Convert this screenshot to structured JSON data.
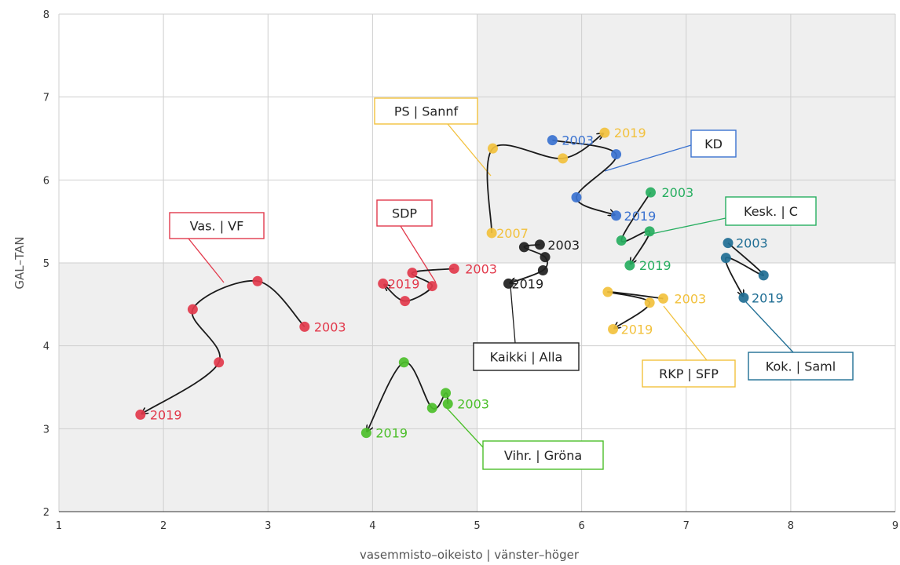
{
  "chart_data": {
    "type": "scatter",
    "xlabel": "vasemmisto–oikeisto | vänster–höger",
    "ylabel": "GAL–TAN",
    "xlim": [
      1,
      9
    ],
    "ylim": [
      2,
      8
    ],
    "xticks": [
      "1",
      "2",
      "3",
      "4",
      "5",
      "6",
      "7",
      "8",
      "9"
    ],
    "yticks": [
      "2",
      "3",
      "4",
      "5",
      "6",
      "7",
      "8"
    ],
    "grid": true,
    "quadrant_shading": [
      {
        "x": [
          1,
          5
        ],
        "y": [
          2,
          5
        ],
        "color": "#efefef"
      },
      {
        "x": [
          5,
          9
        ],
        "y": [
          5,
          8
        ],
        "color": "#efefef"
      }
    ],
    "series": [
      {
        "name": "Vas. | VF",
        "color": "#e23a4c",
        "points": [
          [
            3.35,
            4.23
          ],
          [
            2.9,
            4.78
          ],
          [
            2.28,
            4.44
          ],
          [
            2.53,
            3.8
          ],
          [
            1.78,
            3.17
          ]
        ],
        "year_labels": [
          {
            "text": "2003",
            "index": 0
          },
          {
            "text": "2019",
            "index": 4
          }
        ]
      },
      {
        "name": "SDP",
        "color": "#e23a4c",
        "points": [
          [
            4.78,
            4.93
          ],
          [
            4.38,
            4.88
          ],
          [
            4.57,
            4.72
          ],
          [
            4.31,
            4.54
          ],
          [
            4.1,
            4.75
          ]
        ],
        "year_labels": [
          {
            "text": "2003",
            "index": 0
          },
          {
            "text": "2019",
            "index": 4
          }
        ]
      },
      {
        "name": "Vihr. | Gröna",
        "color": "#4cbf2a",
        "points": [
          [
            4.72,
            3.3
          ],
          [
            4.7,
            3.43
          ],
          [
            4.57,
            3.25
          ],
          [
            4.3,
            3.8
          ],
          [
            3.94,
            2.95
          ]
        ],
        "year_labels": [
          {
            "text": "2003",
            "index": 0
          },
          {
            "text": "2019",
            "index": 4
          }
        ]
      },
      {
        "name": "Kaikki | Alla",
        "color": "#1e1e1e",
        "points": [
          [
            5.6,
            5.22
          ],
          [
            5.45,
            5.19
          ],
          [
            5.65,
            5.07
          ],
          [
            5.63,
            4.91
          ],
          [
            5.3,
            4.75
          ]
        ],
        "year_labels": [
          {
            "text": "2003",
            "index": 0
          },
          {
            "text": "2019",
            "index": 4
          }
        ]
      },
      {
        "name": "PS | Sannf",
        "color": "#f2c13d",
        "points": [
          [
            5.14,
            5.36
          ],
          [
            5.15,
            6.38
          ],
          [
            5.82,
            6.26
          ],
          [
            6.22,
            6.57
          ]
        ],
        "year_labels": [
          {
            "text": "2007",
            "index": 0
          },
          {
            "text": "2019",
            "index": 3
          }
        ]
      },
      {
        "name": "KD",
        "color": "#3a72d0",
        "points": [
          [
            5.72,
            6.48
          ],
          [
            6.33,
            6.31
          ],
          [
            5.95,
            5.79
          ],
          [
            6.33,
            5.57
          ]
        ],
        "year_labels": [
          {
            "text": "2003",
            "index": 0
          },
          {
            "text": "2019",
            "index": 3
          }
        ]
      },
      {
        "name": "Kesk. | C",
        "color": "#27ae60",
        "points": [
          [
            6.66,
            5.85
          ],
          [
            6.38,
            5.27
          ],
          [
            6.65,
            5.38
          ],
          [
            6.46,
            4.97
          ]
        ],
        "year_labels": [
          {
            "text": "2003",
            "index": 0
          },
          {
            "text": "2019",
            "index": 3
          }
        ]
      },
      {
        "name": "RKP | SFP",
        "color": "#f2c13d",
        "points": [
          [
            6.78,
            4.57
          ],
          [
            6.25,
            4.65
          ],
          [
            6.65,
            4.52
          ],
          [
            6.3,
            4.2
          ]
        ],
        "year_labels": [
          {
            "text": "2003",
            "index": 0
          },
          {
            "text": "2019",
            "index": 3
          }
        ]
      },
      {
        "name": "Kok. | Saml",
        "color": "#1f6e94",
        "points": [
          [
            7.4,
            5.24
          ],
          [
            7.74,
            4.85
          ],
          [
            7.38,
            5.06
          ],
          [
            7.55,
            4.58
          ]
        ],
        "year_labels": [
          {
            "text": "2003",
            "index": 0
          },
          {
            "text": "2019",
            "index": 3
          }
        ]
      }
    ],
    "party_labels": [
      {
        "series": "Vas. | VF",
        "color": "#e23a4c"
      },
      {
        "series": "SDP",
        "color": "#e23a4c"
      },
      {
        "series": "Vihr. | Gröna",
        "color": "#4cbf2a"
      },
      {
        "series": "Kaikki | Alla",
        "color": "#1e1e1e"
      },
      {
        "series": "PS | Sannf",
        "color": "#f2c13d"
      },
      {
        "series": "KD",
        "color": "#3a72d0"
      },
      {
        "series": "Kesk. | C",
        "color": "#27ae60"
      },
      {
        "series": "RKP | SFP",
        "color": "#f2c13d"
      },
      {
        "series": "Kok. | Saml",
        "color": "#1f6e94"
      }
    ]
  }
}
